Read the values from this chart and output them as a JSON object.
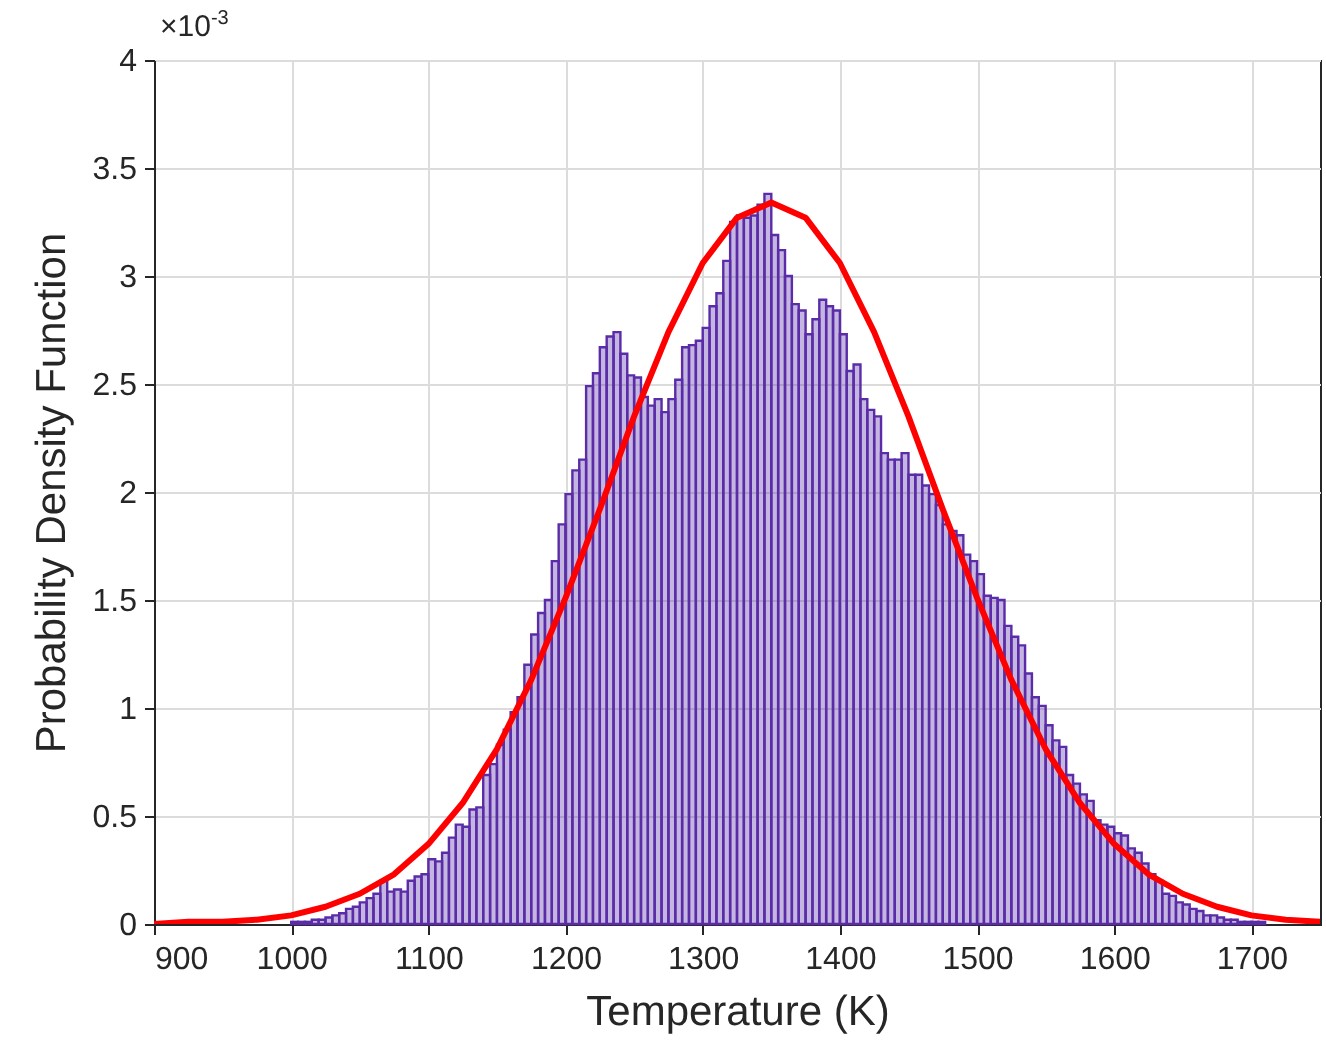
{
  "chart_data": {
    "type": "histogram",
    "xlabel": "Temperature (K)",
    "ylabel": "Probability Density Function",
    "annotations": [
      "×10$^{-3}$"
    ],
    "xlim": [
      900,
      1750
    ],
    "xticks": [
      900,
      1000,
      1100,
      1200,
      1300,
      1400,
      1500,
      1600,
      1700
    ],
    "ylim": [
      0,
      4
    ],
    "yticks": [
      0,
      0.5,
      1,
      1.5,
      2,
      2.5,
      3,
      3.5,
      4
    ],
    "grid": true,
    "marker": "none",
    "line_style": "solid",
    "series": [
      {
        "color": "#5a2ca8",
        "bins": [
          1000,
          1005,
          1010,
          1015,
          1020,
          1025,
          1030,
          1035,
          1040,
          1045,
          1050,
          1055,
          1060,
          1065,
          1070,
          1075,
          1080,
          1085,
          1090,
          1095,
          1100,
          1105,
          1110,
          1115,
          1120,
          1125,
          1130,
          1135,
          1140,
          1145,
          1150,
          1155,
          1160,
          1165,
          1170,
          1175,
          1180,
          1185,
          1190,
          1195,
          1200,
          1205,
          1210,
          1215,
          1220,
          1225,
          1230,
          1235,
          1240,
          1245,
          1250,
          1255,
          1260,
          1265,
          1270,
          1275,
          1280,
          1285,
          1290,
          1295,
          1300,
          1305,
          1310,
          1315,
          1320,
          1325,
          1330,
          1335,
          1340,
          1345,
          1350,
          1355,
          1360,
          1365,
          1370,
          1375,
          1380,
          1385,
          1390,
          1395,
          1400,
          1405,
          1410,
          1415,
          1420,
          1425,
          1430,
          1435,
          1440,
          1445,
          1450,
          1455,
          1460,
          1465,
          1470,
          1475,
          1480,
          1485,
          1490,
          1495,
          1500,
          1505,
          1510,
          1515,
          1520,
          1525,
          1530,
          1535,
          1540,
          1545,
          1550,
          1555,
          1560,
          1565,
          1570,
          1575,
          1580,
          1585,
          1590,
          1595,
          1600,
          1605,
          1610,
          1615,
          1620,
          1625,
          1630,
          1635,
          1640,
          1645,
          1650,
          1655,
          1660,
          1665,
          1670,
          1675,
          1680,
          1685,
          1690,
          1695,
          1700,
          1705,
          1710
        ],
        "values": [
          0.01,
          0.01,
          0.01,
          0.02,
          0.02,
          0.03,
          0.04,
          0.05,
          0.07,
          0.08,
          0.1,
          0.12,
          0.14,
          0.2,
          0.15,
          0.16,
          0.15,
          0.2,
          0.22,
          0.23,
          0.3,
          0.29,
          0.33,
          0.4,
          0.46,
          0.45,
          0.53,
          0.54,
          0.69,
          0.74,
          0.83,
          0.9,
          0.98,
          1.05,
          1.2,
          1.34,
          1.44,
          1.5,
          1.68,
          1.85,
          1.99,
          2.1,
          2.15,
          2.49,
          2.55,
          2.67,
          2.72,
          2.74,
          2.64,
          2.54,
          2.53,
          2.44,
          2.4,
          2.43,
          2.37,
          2.43,
          2.52,
          2.67,
          2.68,
          2.7,
          2.76,
          2.86,
          2.92,
          3.07,
          3.25,
          3.28,
          3.27,
          3.28,
          3.33,
          3.38,
          3.19,
          3.12,
          3.0,
          2.87,
          2.84,
          2.73,
          2.8,
          2.89,
          2.86,
          2.84,
          2.73,
          2.56,
          2.59,
          2.43,
          2.38,
          2.35,
          2.18,
          2.15,
          2.15,
          2.18,
          2.08,
          2.08,
          2.03,
          1.99,
          1.94,
          1.85,
          1.82,
          1.8,
          1.71,
          1.68,
          1.62,
          1.52,
          1.51,
          1.5,
          1.38,
          1.33,
          1.29,
          1.16,
          1.05,
          1.01,
          0.92,
          0.85,
          0.82,
          0.69,
          0.65,
          0.6,
          0.57,
          0.48,
          0.46,
          0.45,
          0.42,
          0.41,
          0.35,
          0.33,
          0.28,
          0.23,
          0.2,
          0.14,
          0.13,
          0.1,
          0.09,
          0.07,
          0.06,
          0.04,
          0.04,
          0.03,
          0.02,
          0.02,
          0.01,
          0.01,
          0.01,
          0.01
        ]
      },
      {
        "type": "line",
        "color": "#ff0000",
        "x": [
          900,
          925,
          950,
          975,
          1000,
          1025,
          1050,
          1075,
          1100,
          1125,
          1150,
          1175,
          1200,
          1225,
          1250,
          1275,
          1300,
          1325,
          1350,
          1375,
          1400,
          1425,
          1450,
          1475,
          1500,
          1525,
          1550,
          1575,
          1600,
          1625,
          1650,
          1675,
          1700,
          1725,
          1750
        ],
        "values": [
          0.0,
          0.01,
          0.01,
          0.02,
          0.04,
          0.08,
          0.14,
          0.23,
          0.37,
          0.56,
          0.81,
          1.13,
          1.51,
          1.92,
          2.35,
          2.74,
          3.06,
          3.27,
          3.34,
          3.27,
          3.06,
          2.74,
          2.35,
          1.92,
          1.51,
          1.13,
          0.81,
          0.56,
          0.37,
          0.23,
          0.14,
          0.08,
          0.04,
          0.02,
          0.01
        ]
      }
    ]
  }
}
